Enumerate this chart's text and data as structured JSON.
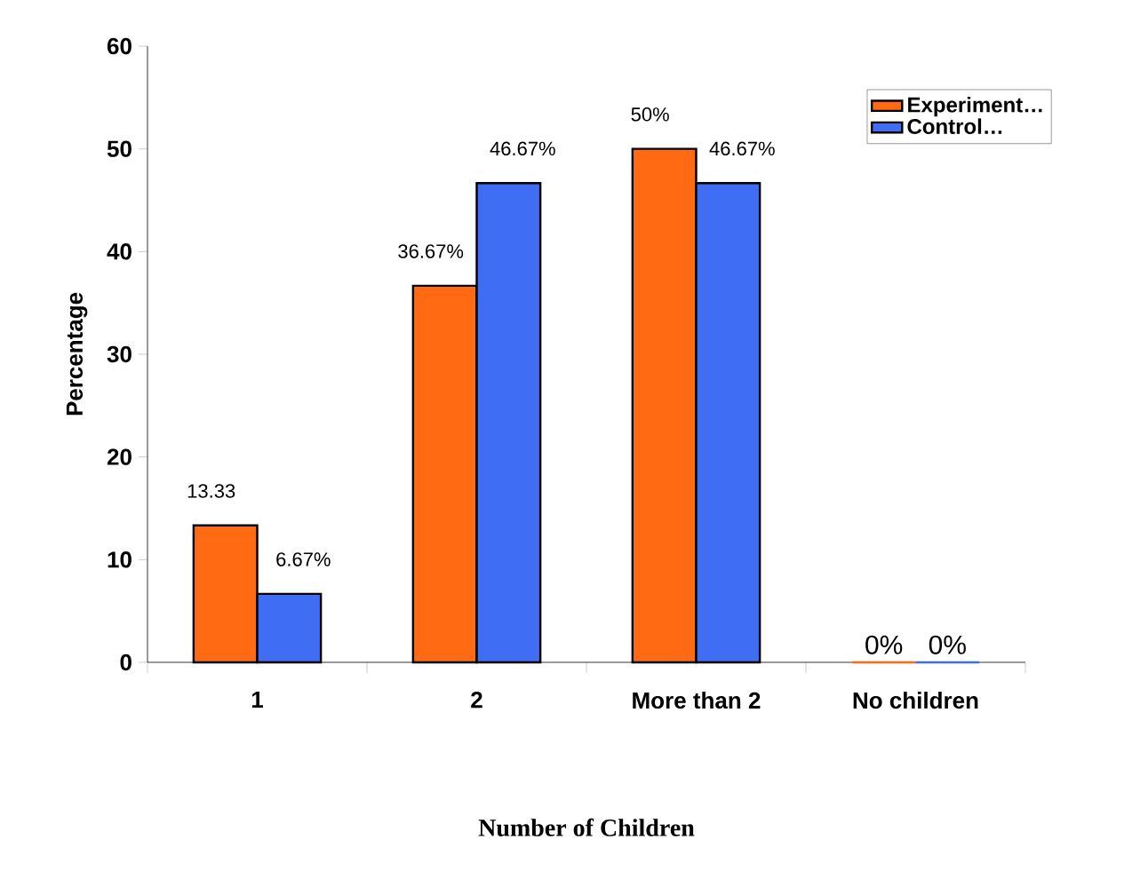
{
  "chart_data": {
    "type": "bar",
    "xlabel": "Number of Children",
    "ylabel": "Percentage",
    "categories": [
      "1",
      "2",
      "More than 2",
      "No children"
    ],
    "series": [
      {
        "name": "Experiment…",
        "color": "#ff6a13",
        "values": [
          13.33,
          36.67,
          50,
          0
        ],
        "value_labels": [
          "13.33",
          "36.67%",
          "50%",
          "0%"
        ]
      },
      {
        "name": "Control…",
        "color": "#3f6ef5",
        "values": [
          6.67,
          46.67,
          46.67,
          0
        ],
        "value_labels": [
          "6.67%",
          "46.67%",
          "46.67%",
          "0%"
        ]
      }
    ],
    "ylim": [
      0,
      60
    ],
    "yticks": [
      0,
      10,
      20,
      30,
      40,
      50,
      60
    ],
    "legend": "top right"
  }
}
